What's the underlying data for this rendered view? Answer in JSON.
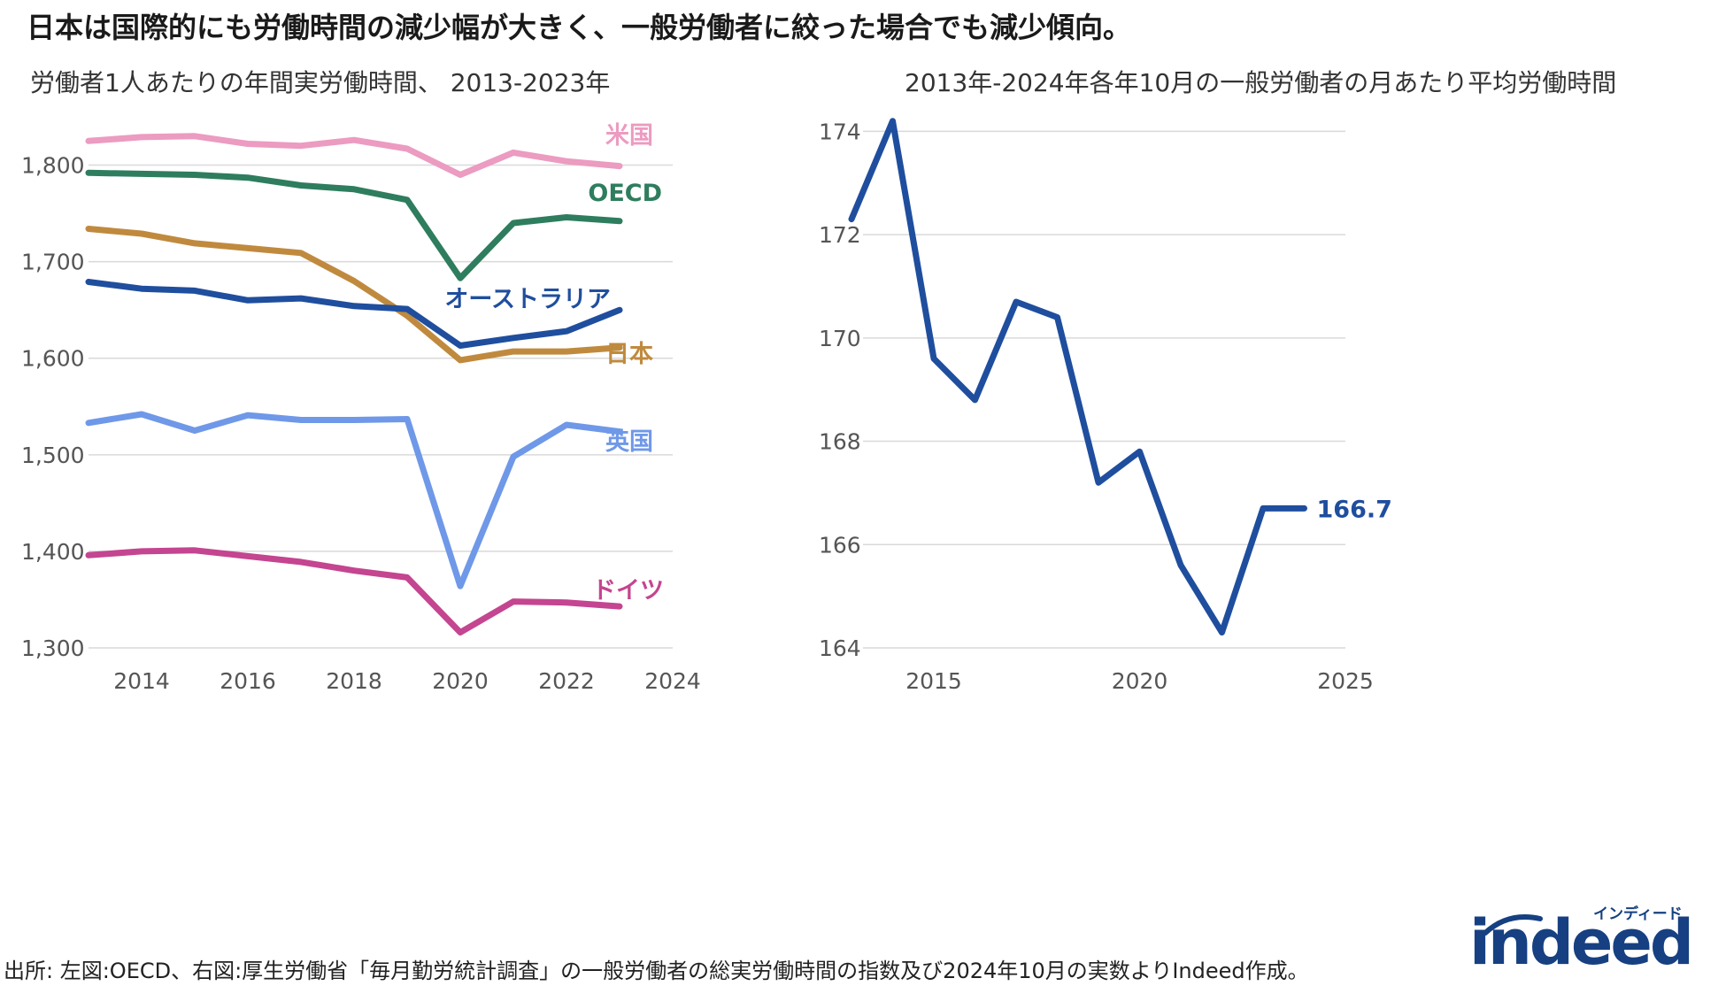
{
  "main_title": "日本は国際的にも労働時間の減少幅が大きく、一般労働者に絞った場合でも減少傾向。",
  "footer": "出所: 左図:OECD、右図:厚生労働省「毎月勤労統計調査」の一般労働者の総実労働時間の指数及び2024年10月の実数よりIndeed作成。",
  "logo": {
    "text": "indeed",
    "tagline": "インディード",
    "color": "#164081"
  },
  "chart_data": [
    {
      "type": "line",
      "title": "労働者1人あたりの年間実労働時間、 2013-2023年",
      "xlabel": "",
      "ylabel": "",
      "xlim": [
        2013,
        2024
      ],
      "ylim": [
        1300,
        1850
      ],
      "x_ticks": [
        2014,
        2016,
        2018,
        2020,
        2022,
        2024
      ],
      "y_ticks": [
        1300,
        1400,
        1500,
        1600,
        1700,
        1800
      ],
      "x_tick_labels": [
        "2014",
        "2016",
        "2018",
        "2020",
        "2022",
        "2024"
      ],
      "y_tick_labels": [
        "1,300",
        "1,400",
        "1,500",
        "1,600",
        "1,700",
        "1,800"
      ],
      "x": [
        2013,
        2014,
        2015,
        2016,
        2017,
        2018,
        2019,
        2020,
        2021,
        2022,
        2023
      ],
      "series": [
        {
          "name": "米国",
          "color": "#ec9bc1",
          "values": [
            1825,
            1829,
            1830,
            1822,
            1820,
            1826,
            1817,
            1790,
            1813,
            1804,
            1799
          ]
        },
        {
          "name": "OECD",
          "color": "#2e7d5e",
          "values": [
            1792,
            1791,
            1790,
            1787,
            1779,
            1775,
            1764,
            1683,
            1740,
            1746,
            1742
          ]
        },
        {
          "name": "日本",
          "color": "#c08a3e",
          "values": [
            1734,
            1729,
            1719,
            1714,
            1709,
            1680,
            1644,
            1598,
            1607,
            1607,
            1611
          ]
        },
        {
          "name": "オーストラリア",
          "color": "#1f4e9e",
          "values": [
            1679,
            1672,
            1670,
            1660,
            1662,
            1654,
            1651,
            1613,
            1621,
            1628,
            1650
          ]
        },
        {
          "name": "英国",
          "color": "#6f98e8",
          "values": [
            1533,
            1542,
            1525,
            1541,
            1536,
            1536,
            1537,
            1364,
            1498,
            1531,
            1524
          ]
        },
        {
          "name": "ドイツ",
          "color": "#c44590",
          "values": [
            1396,
            1400,
            1401,
            1395,
            1389,
            1380,
            1373,
            1316,
            1348,
            1347,
            1343
          ]
        }
      ]
    },
    {
      "type": "line",
      "title": "2013年-2024年各年10月の一般労働者の月あたり平均労働時間",
      "xlabel": "",
      "ylabel": "",
      "xlim": [
        2013,
        2025
      ],
      "ylim": [
        164,
        175
      ],
      "x_ticks": [
        2015,
        2020,
        2025
      ],
      "y_ticks": [
        164,
        166,
        168,
        170,
        172,
        174
      ],
      "x_tick_labels": [
        "2015",
        "2020",
        "2025"
      ],
      "y_tick_labels": [
        "164",
        "166",
        "168",
        "170",
        "172",
        "174"
      ],
      "x": [
        2013,
        2014,
        2015,
        2016,
        2017,
        2018,
        2019,
        2020,
        2021,
        2022,
        2023,
        2024
      ],
      "series": [
        {
          "name": "一般労働者",
          "color": "#1f4e9e",
          "values": [
            172.3,
            174.2,
            169.6,
            168.8,
            170.7,
            170.4,
            167.2,
            167.8,
            165.6,
            164.3,
            166.7,
            166.7
          ]
        }
      ],
      "end_label": "166.7"
    }
  ]
}
